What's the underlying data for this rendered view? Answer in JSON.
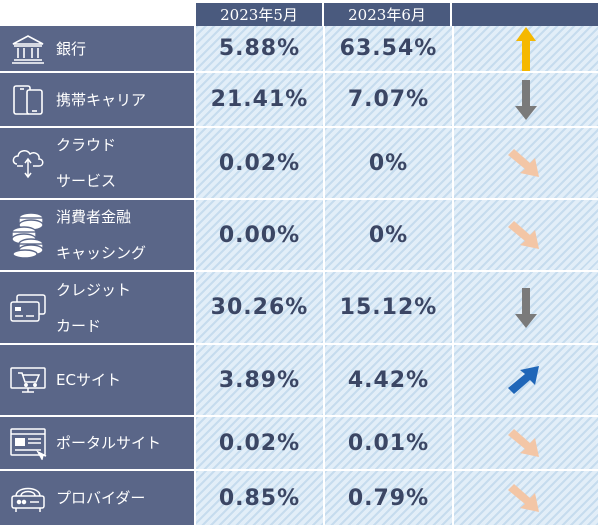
{
  "header": {
    "col_may": "2023年5月",
    "col_jun": "2023年6月"
  },
  "rows": [
    {
      "label": "銀行",
      "label_lines": [
        "銀行"
      ],
      "icon": "bank-icon",
      "may": "5.88%",
      "jun": "63.54%",
      "trend": "up",
      "trend_color": "#f5b800"
    },
    {
      "label": "携帯キャリア",
      "label_lines": [
        "携帯キャリア"
      ],
      "icon": "mobile-phones-icon",
      "may": "21.41%",
      "jun": "7.07%",
      "trend": "down",
      "trend_color": "#7a7a7a"
    },
    {
      "label": "クラウドサービス",
      "label_lines": [
        "クラウド",
        "サービス"
      ],
      "icon": "cloud-sync-icon",
      "may": "0.02%",
      "jun": "0%",
      "trend": "down-right",
      "trend_color": "#f3c6a6"
    },
    {
      "label": "消費者金融キャッシング",
      "label_lines": [
        "消費者金融",
        "キャッシング"
      ],
      "icon": "coins-icon",
      "may": "0.00%",
      "jun": "0%",
      "trend": "down-right",
      "trend_color": "#f3c6a6"
    },
    {
      "label": "クレジットカード",
      "label_lines": [
        "クレジット",
        "カード"
      ],
      "icon": "credit-card-icon",
      "may": "30.26%",
      "jun": "15.12%",
      "trend": "down",
      "trend_color": "#7a7a7a"
    },
    {
      "label": "ECサイト",
      "label_lines": [
        "ECサイト"
      ],
      "icon": "shopping-cart-monitor-icon",
      "may": "3.89%",
      "jun": "4.42%",
      "trend": "up-right",
      "trend_color": "#1f66b8"
    },
    {
      "label": "ポータルサイト",
      "label_lines": [
        "ポータルサイト"
      ],
      "icon": "web-portal-icon",
      "may": "0.02%",
      "jun": "0.01%",
      "trend": "down-right",
      "trend_color": "#f3c6a6"
    },
    {
      "label": "プロバイダー",
      "label_lines": [
        "プロバイダー"
      ],
      "icon": "router-icon",
      "may": "0.85%",
      "jun": "0.79%",
      "trend": "down-right",
      "trend_color": "#f3c6a6"
    }
  ]
}
